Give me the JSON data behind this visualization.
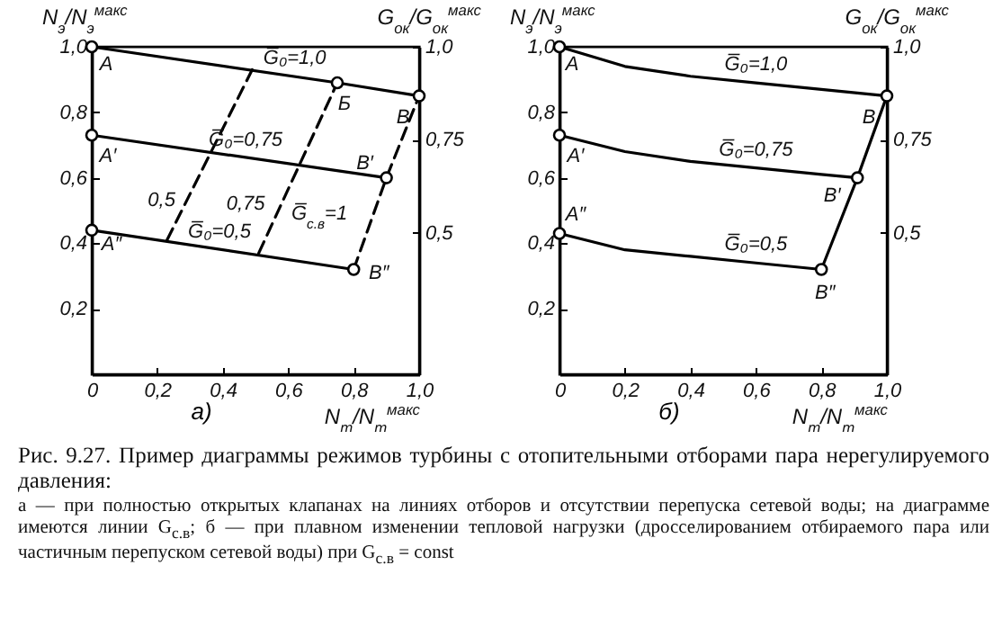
{
  "chart_data": [
    {
      "type": "line",
      "title": "а)",
      "xlabel": "N$_{т}$/N$_{т}$$^{макс}$",
      "ylabel": "N$_{э}$/N$_{э}$$^{макс}$",
      "y2label": "G$_{ок}$/G$_{ок}$$^{макс}$",
      "xlim": [
        0,
        1.0
      ],
      "ylim": [
        0,
        1.0
      ],
      "y2lim": [
        0.12,
        1.0
      ],
      "xticks": [
        {
          "value": 0,
          "label": "0"
        },
        {
          "value": 0.2,
          "label": "0,2"
        },
        {
          "value": 0.4,
          "label": "0,4"
        },
        {
          "value": 0.6,
          "label": "0,6"
        },
        {
          "value": 0.8,
          "label": "0,8"
        },
        {
          "value": 1.0,
          "label": "1,0"
        }
      ],
      "yticks": [
        {
          "value": 0.2,
          "label": "0,2"
        },
        {
          "value": 0.4,
          "label": "0,4"
        },
        {
          "value": 0.6,
          "label": "0,6"
        },
        {
          "value": 0.8,
          "label": "0,8"
        },
        {
          "value": 1.0,
          "label": "1,0"
        }
      ],
      "y2ticks": [
        {
          "value": 0.5,
          "label": "0,5"
        },
        {
          "value": 0.75,
          "label": "0,75"
        },
        {
          "value": 1.0,
          "label": "1,0"
        }
      ],
      "series": [
        {
          "color": "#000000",
          "x": [
            0,
            0.75,
            1.0
          ],
          "values": [
            1.0,
            0.89,
            0.85
          ]
        },
        {
          "color": "#000000",
          "x": [
            0,
            0.9
          ],
          "values": [
            0.73,
            0.6
          ]
        },
        {
          "color": "#000000",
          "x": [
            0,
            0.8
          ],
          "values": [
            0.44,
            0.32
          ]
        },
        {
          "color": "#000000",
          "line_style": "dashed",
          "x": [
            0.23,
            0.49
          ],
          "values": [
            0.41,
            0.93
          ]
        },
        {
          "color": "#000000",
          "line_style": "dashed",
          "x": [
            0.51,
            0.75
          ],
          "values": [
            0.37,
            0.89
          ]
        },
        {
          "color": "#000000",
          "line_style": "dashed",
          "x": [
            0.8,
            0.9,
            1.0
          ],
          "values": [
            0.32,
            0.6,
            0.85
          ]
        },
        {
          "type": "scatter",
          "marker": "circle",
          "color": "#000000",
          "x": [
            0,
            0.75,
            1.0,
            0,
            0.9,
            0,
            0.8
          ],
          "values": [
            1.0,
            0.89,
            0.85,
            0.73,
            0.6,
            0.44,
            0.32
          ]
        }
      ],
      "annotations": [
        {
          "text": "А",
          "x": 0,
          "y": 1.0
        },
        {
          "text": "Б",
          "x": 0.75,
          "y": 0.89
        },
        {
          "text": "В",
          "x": 1.0,
          "y": 0.85
        },
        {
          "text": "А′",
          "x": 0,
          "y": 0.73
        },
        {
          "text": "В′",
          "x": 0.9,
          "y": 0.6
        },
        {
          "text": "А″",
          "x": 0,
          "y": 0.44
        },
        {
          "text": "В″",
          "x": 0.8,
          "y": 0.32
        },
        {
          "text": "G̅₀=1,0",
          "x": 0.62,
          "y": 0.91
        },
        {
          "text": "G̅₀=0,75",
          "x": 0.47,
          "y": 0.66
        },
        {
          "text": "G̅₀=0,5",
          "x": 0.39,
          "y": 0.38
        },
        {
          "text": "0,5",
          "x": 0.29,
          "y": 0.53
        },
        {
          "text": "0,75",
          "x": 0.58,
          "y": 0.52
        },
        {
          "text": "G̅$_{с.в}$=1",
          "x": 0.86,
          "y": 0.49
        },
        "Рис. 9.27. Пример диаграммы режимов турбины с отопительными отборами пара нерегулируемого давления:",
        "а — при полностью открытых клапанах на линиях отборов и отсутствии перепуска сетевой воды; на диаграмме имеются линии G$_{с.в}$; б — при плавном изменении тепловой нагрузки (дросселированием отбираемого пара или частичным перепуском сетевой воды) при G$_{с.в}$ = const"
      ]
    },
    {
      "type": "line",
      "title": "б)",
      "xlabel": "N$_{т}$/N$_{т}$$^{макс}$",
      "ylabel": "N$_{э}$/N$_{э}$$^{макс}$",
      "y2label": "G$_{ок}$/G$_{ок}$$^{макс}$",
      "xlim": [
        0,
        1.0
      ],
      "ylim": [
        0,
        1.0
      ],
      "y2lim": [
        0.12,
        1.0
      ],
      "xticks": [
        {
          "value": 0,
          "label": "0"
        },
        {
          "value": 0.2,
          "label": "0,2"
        },
        {
          "value": 0.4,
          "label": "0,4"
        },
        {
          "value": 0.6,
          "label": "0,6"
        },
        {
          "value": 0.8,
          "label": "0,8"
        },
        {
          "value": 1.0,
          "label": "1,0"
        }
      ],
      "yticks": [
        {
          "value": 0.2,
          "label": "0,2"
        },
        {
          "value": 0.4,
          "label": "0,4"
        },
        {
          "value": 0.6,
          "label": "0,6"
        },
        {
          "value": 0.8,
          "label": "0,8"
        },
        {
          "value": 1.0,
          "label": "1,0"
        }
      ],
      "y2ticks": [
        {
          "value": 0.5,
          "label": "0,5"
        },
        {
          "value": 0.75,
          "label": "0,75"
        },
        {
          "value": 1.0,
          "label": "1,0"
        }
      ],
      "series": [
        {
          "color": "#000000",
          "x": [
            0,
            0.2,
            0.4,
            0.6,
            0.8,
            1.0
          ],
          "values": [
            1.0,
            0.94,
            0.91,
            0.89,
            0.87,
            0.85
          ]
        },
        {
          "color": "#000000",
          "x": [
            0,
            0.2,
            0.4,
            0.6,
            0.8,
            0.91
          ],
          "values": [
            0.73,
            0.68,
            0.65,
            0.63,
            0.61,
            0.6
          ]
        },
        {
          "color": "#000000",
          "x": [
            0,
            0.2,
            0.4,
            0.6,
            0.8
          ],
          "values": [
            0.43,
            0.38,
            0.36,
            0.34,
            0.32
          ]
        },
        {
          "color": "#000000",
          "x": [
            0.8,
            0.91,
            1.0
          ],
          "values": [
            0.32,
            0.6,
            0.85
          ]
        },
        {
          "type": "scatter",
          "marker": "circle",
          "color": "#000000",
          "x": [
            0,
            1.0,
            0,
            0.91,
            0,
            0.8
          ],
          "values": [
            1.0,
            0.85,
            0.73,
            0.6,
            0.43,
            0.32
          ]
        }
      ],
      "annotations": [
        {
          "text": "А",
          "x": 0,
          "y": 1.0
        },
        {
          "text": "А′",
          "x": 0,
          "y": 0.73
        },
        {
          "text": "А″",
          "x": 0,
          "y": 0.43
        },
        {
          "text": "В",
          "x": 1.0,
          "y": 0.85
        },
        {
          "text": "В′",
          "x": 0.91,
          "y": 0.6
        },
        {
          "text": "В″",
          "x": 0.8,
          "y": 0.32
        },
        {
          "text": "G̅₀=1,0",
          "x": 0.6,
          "y": 0.89
        },
        {
          "text": "G̅₀=0,75",
          "x": 0.6,
          "y": 0.63
        },
        {
          "text": "G̅₀=0,5",
          "x": 0.6,
          "y": 0.34
        }
      ]
    }
  ]
}
